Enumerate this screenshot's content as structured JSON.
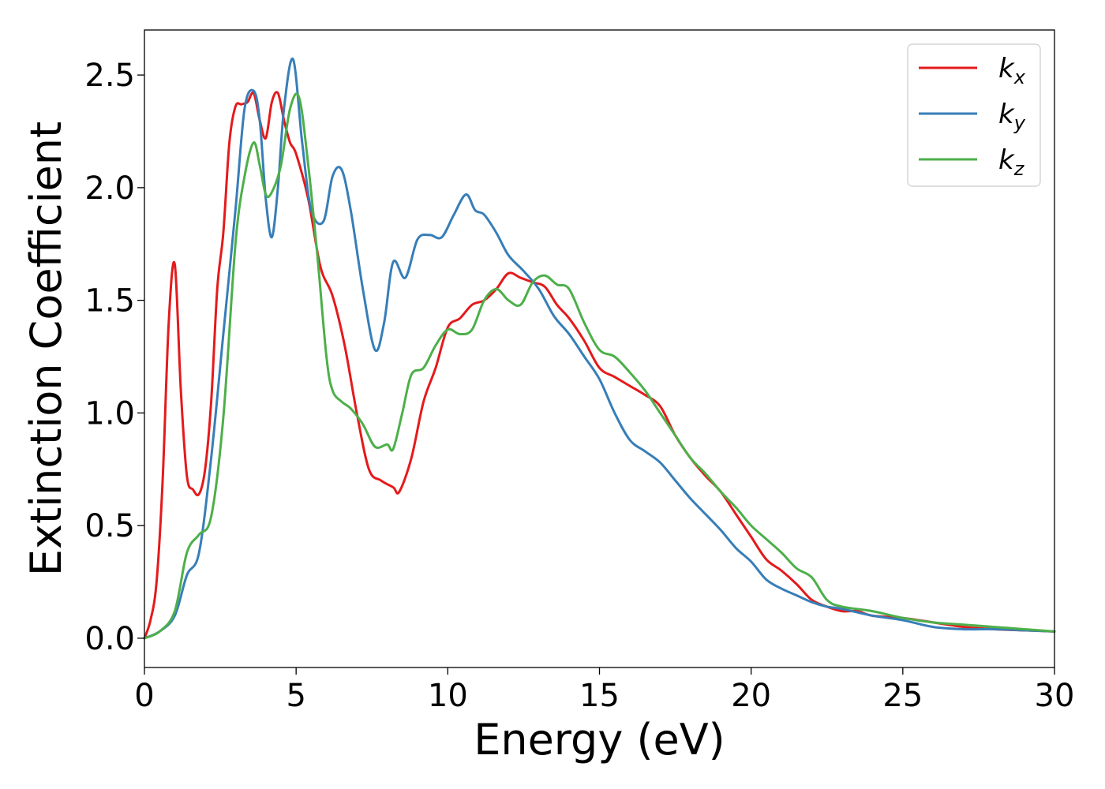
{
  "chart_data": {
    "type": "line",
    "title": "",
    "xlabel": "Energy (eV)",
    "ylabel": "Extinction Coefficient",
    "xlim": [
      0,
      30
    ],
    "ylim": [
      -0.13,
      2.7
    ],
    "xticks": [
      0,
      5,
      10,
      15,
      20,
      25,
      30
    ],
    "xtick_labels": [
      "0",
      "5",
      "10",
      "15",
      "20",
      "25",
      "30"
    ],
    "yticks": [
      0.0,
      0.5,
      1.0,
      1.5,
      2.0,
      2.5
    ],
    "ytick_labels": [
      "0.0",
      "0.5",
      "1.0",
      "1.5",
      "2.0",
      "2.5"
    ],
    "grid": false,
    "legend_position": "top-right",
    "series": [
      {
        "name": "k",
        "subscript": "x",
        "color": "#e41a1c",
        "x": [
          0,
          0.2,
          0.4,
          0.6,
          0.8,
          1.0,
          1.2,
          1.4,
          1.6,
          1.8,
          2.0,
          2.2,
          2.4,
          2.6,
          2.8,
          3.0,
          3.2,
          3.4,
          3.6,
          3.8,
          4.0,
          4.2,
          4.4,
          4.6,
          4.8,
          5.0,
          5.4,
          5.8,
          6.2,
          6.6,
          7.0,
          7.4,
          7.8,
          8.2,
          8.4,
          8.8,
          9.2,
          9.6,
          10.0,
          10.4,
          10.8,
          11.2,
          11.6,
          12.0,
          12.4,
          12.8,
          13.2,
          13.6,
          14.0,
          14.5,
          15.0,
          15.5,
          16.0,
          16.5,
          17.0,
          17.5,
          18.0,
          18.5,
          19.0,
          19.5,
          20.0,
          20.5,
          21.0,
          21.5,
          22.0,
          22.5,
          23.0,
          23.5,
          24.0,
          25.0,
          26.0,
          27.0,
          28.0,
          29.0,
          30.0
        ],
        "y": [
          0.0,
          0.08,
          0.25,
          0.7,
          1.4,
          1.66,
          1.1,
          0.72,
          0.66,
          0.64,
          0.75,
          1.05,
          1.55,
          1.8,
          2.2,
          2.36,
          2.37,
          2.38,
          2.42,
          2.3,
          2.22,
          2.38,
          2.42,
          2.3,
          2.2,
          2.15,
          1.95,
          1.65,
          1.52,
          1.3,
          1.0,
          0.75,
          0.7,
          0.67,
          0.65,
          0.8,
          1.05,
          1.2,
          1.38,
          1.42,
          1.48,
          1.5,
          1.55,
          1.62,
          1.6,
          1.58,
          1.56,
          1.48,
          1.42,
          1.32,
          1.2,
          1.16,
          1.12,
          1.08,
          1.03,
          0.9,
          0.8,
          0.72,
          0.65,
          0.55,
          0.45,
          0.35,
          0.3,
          0.24,
          0.17,
          0.14,
          0.12,
          0.12,
          0.1,
          0.09,
          0.07,
          0.05,
          0.04,
          0.035,
          0.03
        ]
      },
      {
        "name": "k",
        "subscript": "y",
        "color": "#377eb8",
        "x": [
          0,
          0.5,
          1.0,
          1.4,
          1.8,
          2.2,
          2.6,
          3.0,
          3.3,
          3.6,
          3.8,
          4.0,
          4.2,
          4.4,
          4.6,
          4.9,
          5.2,
          5.5,
          5.9,
          6.2,
          6.5,
          6.8,
          7.2,
          7.6,
          7.9,
          8.2,
          8.6,
          9.0,
          9.4,
          9.8,
          10.2,
          10.6,
          10.9,
          11.2,
          11.6,
          12.0,
          12.5,
          13.0,
          13.5,
          14.0,
          14.5,
          15.0,
          15.5,
          16.0,
          16.5,
          17.0,
          17.5,
          18.0,
          18.5,
          19.0,
          19.5,
          20.0,
          20.5,
          21.0,
          21.5,
          22.0,
          22.5,
          23.0,
          24.0,
          25.0,
          26.0,
          27.0,
          28.0,
          29.0,
          30.0
        ],
        "y": [
          0.0,
          0.03,
          0.1,
          0.28,
          0.38,
          0.8,
          1.35,
          1.9,
          2.35,
          2.43,
          2.3,
          1.95,
          1.78,
          2.0,
          2.35,
          2.57,
          2.2,
          1.9,
          1.85,
          2.05,
          2.08,
          1.9,
          1.55,
          1.28,
          1.4,
          1.67,
          1.6,
          1.77,
          1.79,
          1.78,
          1.88,
          1.97,
          1.9,
          1.88,
          1.8,
          1.7,
          1.63,
          1.55,
          1.43,
          1.35,
          1.25,
          1.15,
          1.0,
          0.88,
          0.83,
          0.78,
          0.7,
          0.62,
          0.55,
          0.48,
          0.4,
          0.34,
          0.26,
          0.22,
          0.19,
          0.16,
          0.14,
          0.13,
          0.1,
          0.08,
          0.05,
          0.04,
          0.04,
          0.035,
          0.03
        ]
      },
      {
        "name": "k",
        "subscript": "z",
        "color": "#4daf4a",
        "x": [
          0,
          0.5,
          1.0,
          1.4,
          1.8,
          2.2,
          2.6,
          3.0,
          3.3,
          3.6,
          3.8,
          4.0,
          4.2,
          4.5,
          4.8,
          5.1,
          5.4,
          5.7,
          6.0,
          6.2,
          6.5,
          6.8,
          7.2,
          7.6,
          8.0,
          8.2,
          8.5,
          8.8,
          9.2,
          9.6,
          10.0,
          10.4,
          10.8,
          11.2,
          11.6,
          12.0,
          12.4,
          12.8,
          13.2,
          13.6,
          14.0,
          14.5,
          15.0,
          15.5,
          16.0,
          16.5,
          17.0,
          17.5,
          18.0,
          18.5,
          19.0,
          19.5,
          20.0,
          20.5,
          21.0,
          21.5,
          22.0,
          22.5,
          23.0,
          24.0,
          25.0,
          26.0,
          27.0,
          28.0,
          29.0,
          30.0
        ],
        "y": [
          0.0,
          0.03,
          0.12,
          0.38,
          0.46,
          0.54,
          0.98,
          1.75,
          2.05,
          2.2,
          2.1,
          1.97,
          1.98,
          2.1,
          2.35,
          2.4,
          2.1,
          1.7,
          1.25,
          1.1,
          1.05,
          1.02,
          0.95,
          0.85,
          0.86,
          0.84,
          1.0,
          1.17,
          1.2,
          1.3,
          1.37,
          1.35,
          1.37,
          1.5,
          1.55,
          1.5,
          1.48,
          1.58,
          1.61,
          1.57,
          1.55,
          1.4,
          1.28,
          1.25,
          1.18,
          1.1,
          1.0,
          0.9,
          0.8,
          0.73,
          0.65,
          0.58,
          0.5,
          0.44,
          0.38,
          0.31,
          0.27,
          0.17,
          0.14,
          0.12,
          0.09,
          0.07,
          0.06,
          0.05,
          0.04,
          0.03
        ]
      }
    ]
  }
}
